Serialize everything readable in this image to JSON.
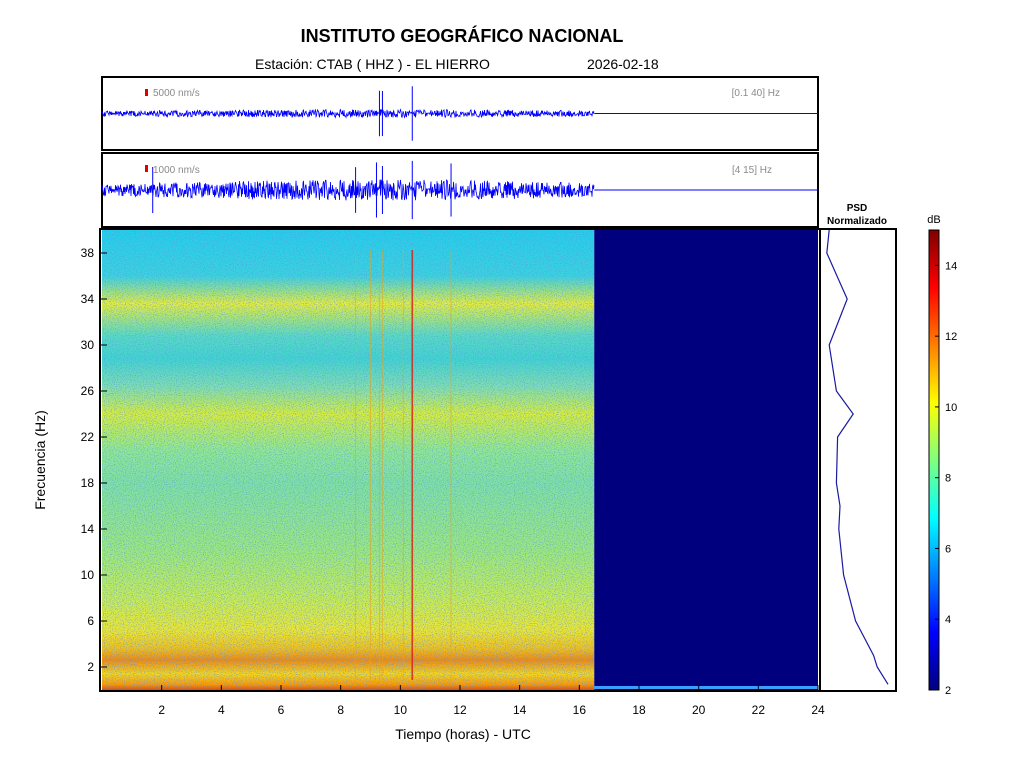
{
  "header": {
    "title": "INSTITUTO GEOGRÁFICO NACIONAL",
    "station": "Estación:  CTAB ( HHZ ) - EL HIERRO",
    "date": "2026-02-18"
  },
  "colors": {
    "trace": "#0000ff",
    "scale_bar": "#e00000",
    "empty_region": "#00007f",
    "psd_line": "#1a1aa0"
  },
  "chart_data": [
    {
      "type": "line",
      "name": "seismogram-broadband",
      "scale_label": "5000 nm/s",
      "filter_label": "[0.1 40] Hz",
      "xlim": [
        0,
        24
      ],
      "data_end_hour": 16.5,
      "spikes_hours": [
        9.3,
        9.4,
        10.4
      ]
    },
    {
      "type": "line",
      "name": "seismogram-filtered",
      "scale_label": "1000 nm/s",
      "filter_label": "[4 15] Hz",
      "xlim": [
        0,
        24
      ],
      "data_end_hour": 16.5,
      "spikes_hours": [
        1.7,
        8.5,
        9.2,
        9.4,
        10.4,
        11.7
      ]
    },
    {
      "type": "heatmap",
      "title": "",
      "xlabel": "Tiempo (horas) - UTC",
      "ylabel": "Frecuencia  (Hz)",
      "xlim": [
        0,
        24
      ],
      "ylim": [
        0,
        40
      ],
      "x_ticks": [
        2,
        4,
        6,
        8,
        10,
        12,
        14,
        16,
        18,
        20,
        22,
        24
      ],
      "y_ticks": [
        2,
        6,
        10,
        14,
        18,
        22,
        26,
        30,
        34,
        38
      ],
      "data_end_hour": 16.5,
      "colorscale": "jet",
      "colorbar": {
        "label": "dB",
        "range": [
          2,
          15
        ],
        "ticks": [
          2,
          4,
          6,
          8,
          10,
          12,
          14
        ]
      },
      "psd_profile_db": [
        [
          0.5,
          12.5
        ],
        [
          2,
          11.6
        ],
        [
          3,
          11.3
        ],
        [
          6,
          9.8
        ],
        [
          10,
          8.8
        ],
        [
          14,
          8.4
        ],
        [
          16,
          8.5
        ],
        [
          18,
          8.2
        ],
        [
          22,
          8.3
        ],
        [
          24,
          9.6
        ],
        [
          26,
          8.2
        ],
        [
          30,
          7.6
        ],
        [
          34,
          9.1
        ],
        [
          38,
          7.4
        ],
        [
          40,
          7.6
        ]
      ],
      "vertical_events_hours": [
        8.5,
        9.0,
        9.3,
        9.4,
        10.1,
        10.4,
        11.7
      ]
    },
    {
      "type": "line",
      "title": "PSD\nNormalizado",
      "title_lines": [
        "PSD",
        "Normalizado"
      ],
      "ylim": [
        0,
        40
      ]
    }
  ]
}
